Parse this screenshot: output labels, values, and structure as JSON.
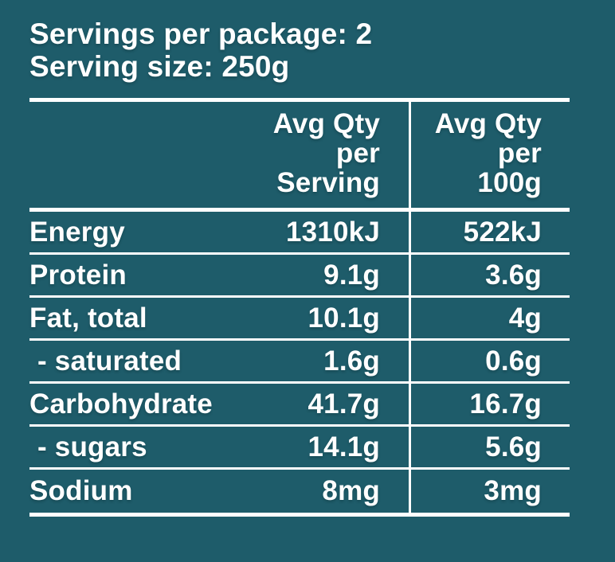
{
  "panel": {
    "background_color": "#1E5C6A",
    "text_color": "#FFFFFF",
    "rule_color": "#FFFFFF",
    "servings_line": "Servings per package: 2",
    "serving_size_line": "Serving size: 250g"
  },
  "table": {
    "header": {
      "per_serving_lines": [
        "Avg Qty",
        "per",
        "Serving"
      ],
      "per_100g_lines": [
        "Avg Qty",
        "per",
        "100g"
      ]
    },
    "rows": [
      {
        "label": "Energy",
        "per_serving": "1310kJ",
        "per_100g": "522kJ",
        "indent": false
      },
      {
        "label": "Protein",
        "per_serving": "9.1g",
        "per_100g": "3.6g",
        "indent": false
      },
      {
        "label": "Fat, total",
        "per_serving": "10.1g",
        "per_100g": "4g",
        "indent": false
      },
      {
        "label": "- saturated",
        "per_serving": "1.6g",
        "per_100g": "0.6g",
        "indent": true
      },
      {
        "label": "Carbohydrate",
        "per_serving": "41.7g",
        "per_100g": "16.7g",
        "indent": false
      },
      {
        "label": "- sugars",
        "per_serving": "14.1g",
        "per_100g": "5.6g",
        "indent": true
      },
      {
        "label": "Sodium",
        "per_serving": "8mg",
        "per_100g": "3mg",
        "indent": false
      }
    ]
  }
}
